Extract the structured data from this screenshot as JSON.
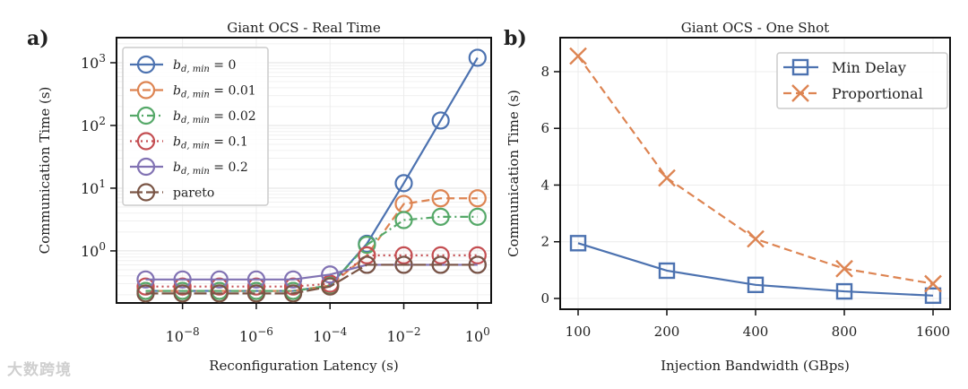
{
  "watermark": "大数跨境",
  "chart_data": [
    {
      "panel_label": "a)",
      "type": "line",
      "title": "Giant OCS - Real Time",
      "xlabel": "Reconfiguration Latency (s)",
      "ylabel": "Communication Time (s)",
      "xscale": "log",
      "yscale": "log",
      "xlim_log10": [
        -9.79,
        0.37
      ],
      "ylim_log10": [
        -0.83,
        3.4
      ],
      "xticks_log10": [
        -8,
        -6,
        -4,
        -2,
        0
      ],
      "yticks_log10": [
        0,
        1,
        2,
        3
      ],
      "grid": true,
      "legend_position": "top-left",
      "x": [
        1e-09,
        1e-08,
        1e-07,
        1e-06,
        1e-05,
        0.0001,
        0.001,
        0.01,
        0.1,
        1
      ],
      "series": [
        {
          "name": "b_d,min = 0",
          "base": "b",
          "sub": "d, min",
          "rest": " = 0",
          "color": "#4c72b0",
          "dash": "",
          "values": [
            0.23,
            0.23,
            0.23,
            0.23,
            0.23,
            0.28,
            1.3,
            12,
            120,
            1200
          ]
        },
        {
          "name": "b_d,min = 0.01",
          "base": "b",
          "sub": "d, min",
          "rest": " = 0.01",
          "color": "#dd8452",
          "dash": "9,5",
          "values": [
            0.23,
            0.23,
            0.23,
            0.23,
            0.23,
            0.28,
            0.85,
            5.6,
            6.9,
            6.9
          ]
        },
        {
          "name": "b_d,min = 0.02",
          "base": "b",
          "sub": "d, min",
          "rest": " = 0.02",
          "color": "#55a868",
          "dash": "9,4,2,4",
          "values": [
            0.23,
            0.23,
            0.23,
            0.23,
            0.23,
            0.28,
            1.25,
            3.1,
            3.5,
            3.5
          ]
        },
        {
          "name": "b_d,min = 0.1",
          "base": "b",
          "sub": "d, min",
          "rest": " = 0.1",
          "color": "#c44e52",
          "dash": "2,4",
          "values": [
            0.27,
            0.27,
            0.27,
            0.27,
            0.27,
            0.3,
            0.85,
            0.85,
            0.85,
            0.85
          ]
        },
        {
          "name": "b_d,min = 0.2",
          "base": "b",
          "sub": "d, min",
          "rest": " = 0.2",
          "color": "#8172b3",
          "dash": "",
          "values": [
            0.35,
            0.35,
            0.35,
            0.35,
            0.35,
            0.42,
            0.6,
            0.6,
            0.6,
            0.6
          ]
        },
        {
          "name": "pareto",
          "base": "pareto",
          "sub": "",
          "rest": "",
          "color": "#7a5545",
          "dash": "14,4",
          "values": [
            0.21,
            0.21,
            0.21,
            0.21,
            0.21,
            0.27,
            0.6,
            0.6,
            0.6,
            0.6
          ]
        }
      ]
    },
    {
      "panel_label": "b)",
      "type": "line",
      "title": "Giant OCS - One Shot",
      "xlabel": "Injection Bandwidth (GBps)",
      "ylabel": "Communication Time (s)",
      "categories": [
        "100",
        "200",
        "400",
        "800",
        "1600"
      ],
      "ylim": [
        -0.38,
        9.2
      ],
      "yticks": [
        0,
        2,
        4,
        6,
        8
      ],
      "grid": true,
      "legend_position": "top-right",
      "series": [
        {
          "name": "Min Delay",
          "color": "#4c72b0",
          "dash": "",
          "marker": "square",
          "values": [
            1.95,
            0.98,
            0.48,
            0.25,
            0.1
          ]
        },
        {
          "name": "Proportional",
          "color": "#dd8452",
          "dash": "9,5",
          "marker": "x",
          "values": [
            8.55,
            4.25,
            2.1,
            1.05,
            0.52
          ]
        }
      ]
    }
  ]
}
